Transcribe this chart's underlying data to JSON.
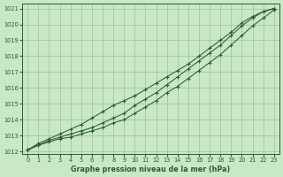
{
  "xlabel": "Graphe pression niveau de la mer (hPa)",
  "background_color": "#c8e8c8",
  "grid_color": "#9dbf9d",
  "line_color": "#2a5e2a",
  "marker_color": "#2a5e2a",
  "x_hours": [
    0,
    1,
    2,
    3,
    4,
    5,
    6,
    7,
    8,
    9,
    10,
    11,
    12,
    13,
    14,
    15,
    16,
    17,
    18,
    19,
    20,
    21,
    22,
    23
  ],
  "line_bottom": [
    1012.1,
    1012.4,
    1012.6,
    1012.8,
    1012.9,
    1013.1,
    1013.3,
    1013.5,
    1013.8,
    1014.0,
    1014.4,
    1014.8,
    1015.2,
    1015.7,
    1016.1,
    1016.6,
    1017.1,
    1017.6,
    1018.1,
    1018.7,
    1019.3,
    1019.9,
    1020.4,
    1020.9
  ],
  "line_mid": [
    1012.1,
    1012.4,
    1012.7,
    1012.9,
    1013.1,
    1013.3,
    1013.5,
    1013.8,
    1014.1,
    1014.4,
    1014.9,
    1015.3,
    1015.7,
    1016.2,
    1016.7,
    1017.2,
    1017.7,
    1018.2,
    1018.7,
    1019.3,
    1019.9,
    1020.4,
    1020.8,
    1021.0
  ],
  "line_top": [
    1012.1,
    1012.5,
    1012.8,
    1013.1,
    1013.4,
    1013.7,
    1014.1,
    1014.5,
    1014.9,
    1015.2,
    1015.5,
    1015.9,
    1016.3,
    1016.7,
    1017.1,
    1017.5,
    1018.0,
    1018.5,
    1019.0,
    1019.5,
    1020.1,
    1020.5,
    1020.8,
    1021.0
  ],
  "ylim": [
    1012,
    1021
  ],
  "xlim": [
    0,
    23
  ],
  "yticks": [
    1012,
    1013,
    1014,
    1015,
    1016,
    1017,
    1018,
    1019,
    1020,
    1021
  ],
  "xticks": [
    0,
    1,
    2,
    3,
    4,
    5,
    6,
    7,
    8,
    9,
    10,
    11,
    12,
    13,
    14,
    15,
    16,
    17,
    18,
    19,
    20,
    21,
    22,
    23
  ],
  "xlabel_fontsize": 5.8,
  "tick_fontsize": 4.8
}
